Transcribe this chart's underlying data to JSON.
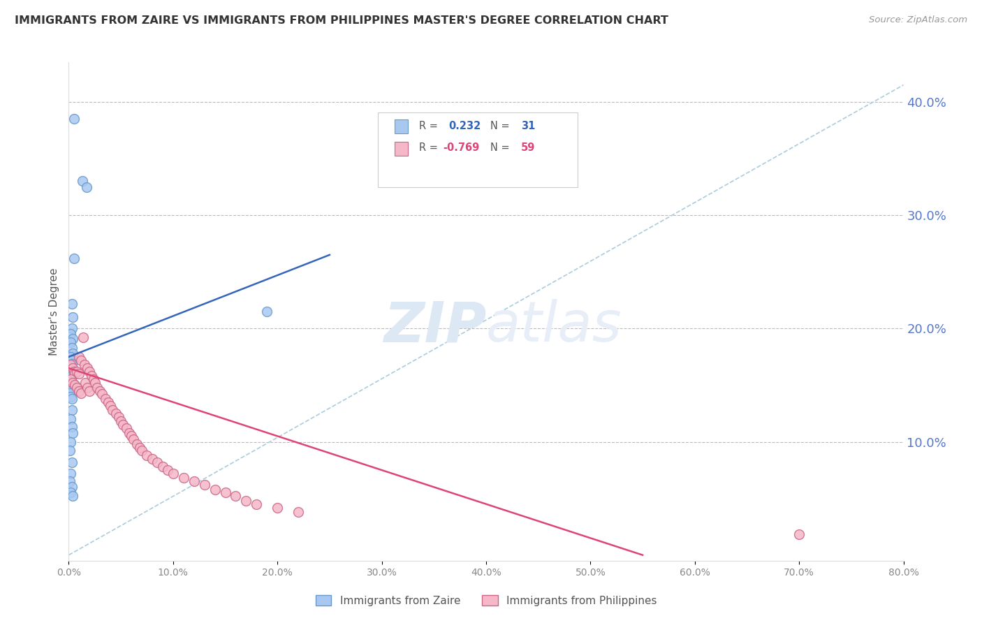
{
  "title": "IMMIGRANTS FROM ZAIRE VS IMMIGRANTS FROM PHILIPPINES MASTER'S DEGREE CORRELATION CHART",
  "source_text": "Source: ZipAtlas.com",
  "ylabel": "Master's Degree",
  "right_yticks": [
    "40.0%",
    "30.0%",
    "20.0%",
    "10.0%"
  ],
  "right_ytick_vals": [
    0.4,
    0.3,
    0.2,
    0.1
  ],
  "bottom_xtick_vals": [
    0.0,
    0.1,
    0.2,
    0.3,
    0.4,
    0.5,
    0.6,
    0.7,
    0.8
  ],
  "xlim": [
    0.0,
    0.8
  ],
  "ylim": [
    -0.005,
    0.435
  ],
  "zaire_color": "#a8c8f0",
  "zaire_edge": "#6699cc",
  "phil_color": "#f5b8c8",
  "phil_edge": "#cc6688",
  "trendline_zaire_color": "#3366bb",
  "trendline_phil_color": "#dd4477",
  "trendline_dashed_color": "#aaccdd",
  "background_color": "#ffffff",
  "grid_color": "#bbbbbb",
  "right_axis_color": "#5577cc",
  "title_color": "#333333",
  "watermark_color": "#dde8f5",
  "zaire_trendline": [
    [
      0.0,
      0.175
    ],
    [
      0.25,
      0.265
    ]
  ],
  "phil_trendline": [
    [
      0.0,
      0.165
    ],
    [
      0.55,
      0.0
    ]
  ],
  "diag_line": [
    [
      0.0,
      0.0
    ],
    [
      0.8,
      0.415
    ]
  ],
  "zaire_points": [
    [
      0.005,
      0.385
    ],
    [
      0.013,
      0.33
    ],
    [
      0.017,
      0.325
    ],
    [
      0.005,
      0.262
    ],
    [
      0.003,
      0.222
    ],
    [
      0.004,
      0.21
    ],
    [
      0.003,
      0.2
    ],
    [
      0.002,
      0.195
    ],
    [
      0.004,
      0.191
    ],
    [
      0.002,
      0.188
    ],
    [
      0.003,
      0.183
    ],
    [
      0.004,
      0.178
    ],
    [
      0.002,
      0.175
    ],
    [
      0.003,
      0.172
    ],
    [
      0.003,
      0.169
    ],
    [
      0.002,
      0.167
    ],
    [
      0.002,
      0.163
    ],
    [
      0.001,
      0.161
    ],
    [
      0.003,
      0.158
    ],
    [
      0.002,
      0.155
    ],
    [
      0.001,
      0.153
    ],
    [
      0.004,
      0.15
    ],
    [
      0.003,
      0.148
    ],
    [
      0.002,
      0.145
    ],
    [
      0.001,
      0.143
    ],
    [
      0.002,
      0.14
    ],
    [
      0.003,
      0.138
    ],
    [
      0.19,
      0.215
    ],
    [
      0.003,
      0.128
    ],
    [
      0.002,
      0.12
    ],
    [
      0.003,
      0.113
    ],
    [
      0.004,
      0.108
    ],
    [
      0.002,
      0.1
    ],
    [
      0.001,
      0.092
    ],
    [
      0.003,
      0.082
    ],
    [
      0.002,
      0.072
    ],
    [
      0.001,
      0.065
    ],
    [
      0.003,
      0.06
    ],
    [
      0.002,
      0.055
    ],
    [
      0.004,
      0.052
    ]
  ],
  "phil_points": [
    [
      0.002,
      0.168
    ],
    [
      0.004,
      0.165
    ],
    [
      0.005,
      0.162
    ],
    [
      0.006,
      0.16
    ],
    [
      0.008,
      0.162
    ],
    [
      0.01,
      0.16
    ],
    [
      0.002,
      0.155
    ],
    [
      0.004,
      0.152
    ],
    [
      0.006,
      0.15
    ],
    [
      0.008,
      0.148
    ],
    [
      0.01,
      0.145
    ],
    [
      0.012,
      0.143
    ],
    [
      0.014,
      0.192
    ],
    [
      0.016,
      0.152
    ],
    [
      0.018,
      0.148
    ],
    [
      0.02,
      0.145
    ],
    [
      0.01,
      0.175
    ],
    [
      0.012,
      0.172
    ],
    [
      0.015,
      0.168
    ],
    [
      0.018,
      0.165
    ],
    [
      0.02,
      0.162
    ],
    [
      0.022,
      0.158
    ],
    [
      0.024,
      0.155
    ],
    [
      0.025,
      0.152
    ],
    [
      0.027,
      0.148
    ],
    [
      0.03,
      0.145
    ],
    [
      0.032,
      0.142
    ],
    [
      0.035,
      0.138
    ],
    [
      0.038,
      0.135
    ],
    [
      0.04,
      0.132
    ],
    [
      0.042,
      0.128
    ],
    [
      0.045,
      0.125
    ],
    [
      0.048,
      0.122
    ],
    [
      0.05,
      0.118
    ],
    [
      0.052,
      0.115
    ],
    [
      0.055,
      0.112
    ],
    [
      0.058,
      0.108
    ],
    [
      0.06,
      0.105
    ],
    [
      0.062,
      0.102
    ],
    [
      0.065,
      0.098
    ],
    [
      0.068,
      0.095
    ],
    [
      0.07,
      0.092
    ],
    [
      0.075,
      0.088
    ],
    [
      0.08,
      0.085
    ],
    [
      0.085,
      0.082
    ],
    [
      0.09,
      0.078
    ],
    [
      0.095,
      0.075
    ],
    [
      0.1,
      0.072
    ],
    [
      0.11,
      0.068
    ],
    [
      0.12,
      0.065
    ],
    [
      0.13,
      0.062
    ],
    [
      0.14,
      0.058
    ],
    [
      0.15,
      0.055
    ],
    [
      0.16,
      0.052
    ],
    [
      0.17,
      0.048
    ],
    [
      0.18,
      0.045
    ],
    [
      0.2,
      0.042
    ],
    [
      0.22,
      0.038
    ],
    [
      0.7,
      0.018
    ]
  ]
}
